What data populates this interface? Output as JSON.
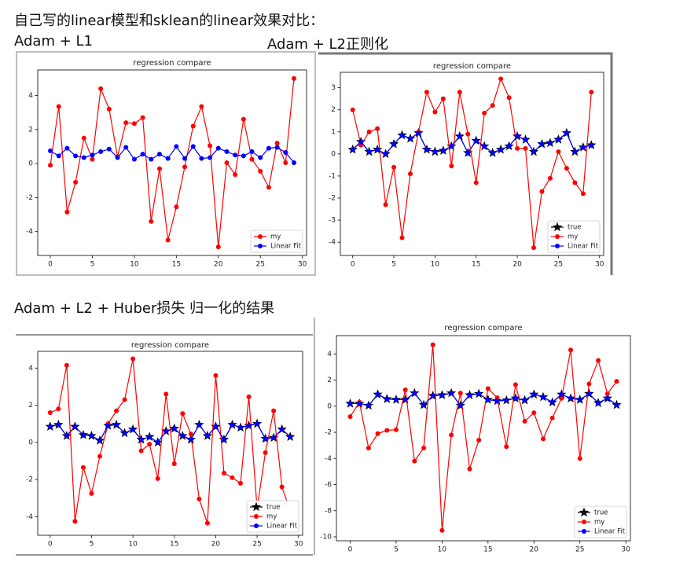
{
  "headings": {
    "intro": "自己写的linear模型和sklean的linear效果对比：",
    "l1": "Adam + L1",
    "l2": "Adam + L2正则化",
    "huber": "Adam + L2 + Huber损失 归一化的结果"
  },
  "chart_data": [
    {
      "type": "line",
      "title": "regression compare",
      "x": [
        0,
        1,
        2,
        3,
        4,
        5,
        6,
        7,
        8,
        9,
        10,
        11,
        12,
        13,
        14,
        15,
        16,
        17,
        18,
        19,
        20,
        21,
        22,
        23,
        24,
        25,
        26,
        27,
        28,
        29
      ],
      "series": [
        {
          "name": "my",
          "color": "#ff0000",
          "marker": "circle",
          "values": [
            -0.1,
            3.35,
            -2.85,
            -1.1,
            1.5,
            0.25,
            4.4,
            3.2,
            0.4,
            2.4,
            2.35,
            2.7,
            -3.4,
            -0.3,
            -4.5,
            -2.55,
            -0.2,
            2.2,
            3.35,
            1.05,
            -4.9,
            0.05,
            -0.65,
            2.6,
            0.25,
            -0.45,
            -1.4,
            1.2,
            0.05,
            5.0
          ]
        },
        {
          "name": "Linear Fit",
          "color": "#0000ff",
          "marker": "circle",
          "values": [
            0.75,
            0.45,
            0.9,
            0.45,
            0.35,
            0.5,
            0.7,
            0.85,
            0.35,
            0.95,
            0.25,
            0.55,
            0.25,
            0.55,
            0.3,
            1.0,
            0.3,
            1.0,
            0.3,
            0.35,
            0.9,
            0.7,
            0.5,
            0.45,
            0.7,
            0.35,
            0.9,
            0.95,
            0.65,
            0.05
          ]
        }
      ],
      "xlim": [
        -1.5,
        30.5
      ],
      "xticks": [
        0,
        5,
        10,
        15,
        20,
        25,
        30
      ],
      "ylim": [
        -5.4,
        5.5
      ],
      "yticks": [
        -4,
        -2,
        0,
        2,
        4
      ],
      "legend": "lower right"
    },
    {
      "type": "line",
      "title": "regression compare",
      "x": [
        0,
        1,
        2,
        3,
        4,
        5,
        6,
        7,
        8,
        9,
        10,
        11,
        12,
        13,
        14,
        15,
        16,
        17,
        18,
        19,
        20,
        21,
        22,
        23,
        24,
        25,
        26,
        27,
        28,
        29
      ],
      "series": [
        {
          "name": "true",
          "color": "#000000",
          "marker": "star",
          "values": [
            0.2,
            0.55,
            0.1,
            0.2,
            0.0,
            0.45,
            0.85,
            0.7,
            0.95,
            0.2,
            0.1,
            0.15,
            0.35,
            0.8,
            0.05,
            0.6,
            0.35,
            0.05,
            0.2,
            0.35,
            0.8,
            0.65,
            0.1,
            0.45,
            0.5,
            0.65,
            0.95,
            0.1,
            0.3,
            0.4
          ]
        },
        {
          "name": "my",
          "color": "#ff0000",
          "marker": "circle",
          "values": [
            2.0,
            0.4,
            1.0,
            1.15,
            -2.3,
            -0.6,
            -3.8,
            -0.9,
            1.0,
            2.8,
            1.9,
            2.5,
            -0.55,
            2.8,
            0.9,
            -1.3,
            1.85,
            2.2,
            3.4,
            2.55,
            0.25,
            0.25,
            -4.25,
            -1.7,
            -1.1,
            0.1,
            -0.65,
            -1.3,
            -1.8,
            2.8
          ]
        },
        {
          "name": "Linear Fit",
          "color": "#0000ff",
          "marker": "circle",
          "values": [
            0.2,
            0.55,
            0.1,
            0.2,
            0.0,
            0.45,
            0.85,
            0.7,
            0.95,
            0.2,
            0.1,
            0.15,
            0.35,
            0.8,
            0.05,
            0.6,
            0.35,
            0.05,
            0.2,
            0.35,
            0.8,
            0.65,
            0.1,
            0.45,
            0.5,
            0.65,
            0.95,
            0.1,
            0.3,
            0.4
          ]
        }
      ],
      "xlim": [
        -1.5,
        30.5
      ],
      "xticks": [
        0,
        5,
        10,
        15,
        20,
        25,
        30
      ],
      "ylim": [
        -4.6,
        3.7
      ],
      "yticks": [
        -4,
        -3,
        -2,
        -1,
        0,
        1,
        2,
        3
      ],
      "legend": "lower right"
    },
    {
      "type": "line",
      "title": "regression compare",
      "x": [
        0,
        1,
        2,
        3,
        4,
        5,
        6,
        7,
        8,
        9,
        10,
        11,
        12,
        13,
        14,
        15,
        16,
        17,
        18,
        19,
        20,
        21,
        22,
        23,
        24,
        25,
        26,
        27,
        28,
        29
      ],
      "series": [
        {
          "name": "true",
          "color": "#000000",
          "marker": "star",
          "values": [
            0.85,
            0.95,
            0.35,
            0.85,
            0.4,
            0.35,
            0.1,
            0.9,
            0.95,
            0.5,
            0.7,
            0.15,
            0.3,
            0.0,
            0.6,
            0.75,
            0.35,
            0.15,
            0.95,
            0.35,
            0.85,
            0.15,
            0.95,
            0.8,
            0.9,
            1.0,
            0.2,
            0.25,
            0.7,
            0.3
          ]
        },
        {
          "name": "my",
          "color": "#ff0000",
          "marker": "circle",
          "values": [
            1.6,
            1.8,
            4.15,
            -4.25,
            -1.35,
            -2.75,
            -0.75,
            1.0,
            1.7,
            2.3,
            4.5,
            -0.45,
            -0.1,
            -1.95,
            2.6,
            -1.15,
            1.55,
            0.45,
            -3.05,
            -4.35,
            3.6,
            -1.65,
            -1.9,
            -2.2,
            2.45,
            -3.55,
            -0.55,
            1.7,
            -2.4,
            -3.7
          ]
        },
        {
          "name": "Linear Fit",
          "color": "#0000ff",
          "marker": "circle",
          "values": [
            0.85,
            0.95,
            0.35,
            0.85,
            0.4,
            0.35,
            0.1,
            0.9,
            0.95,
            0.5,
            0.7,
            0.15,
            0.3,
            0.0,
            0.6,
            0.75,
            0.35,
            0.15,
            0.95,
            0.35,
            0.85,
            0.15,
            0.95,
            0.8,
            0.9,
            1.0,
            0.2,
            0.25,
            0.7,
            0.3
          ]
        }
      ],
      "xlim": [
        -1.5,
        30.5
      ],
      "xticks": [
        0,
        5,
        10,
        15,
        20,
        25,
        30
      ],
      "ylim": [
        -5.0,
        4.9
      ],
      "yticks": [
        -4,
        -2,
        0,
        2,
        4
      ],
      "legend": "lower right"
    },
    {
      "type": "line",
      "title": "regression compare",
      "x": [
        0,
        1,
        2,
        3,
        4,
        5,
        6,
        7,
        8,
        9,
        10,
        11,
        12,
        13,
        14,
        15,
        16,
        17,
        18,
        19,
        20,
        21,
        22,
        23,
        24,
        25,
        26,
        27,
        28,
        29
      ],
      "series": [
        {
          "name": "true",
          "color": "#000000",
          "marker": "star",
          "values": [
            0.2,
            0.2,
            0.05,
            0.9,
            0.55,
            0.5,
            0.5,
            1.0,
            0.1,
            0.8,
            0.85,
            1.0,
            0.05,
            0.85,
            0.95,
            0.5,
            0.4,
            0.45,
            0.6,
            0.45,
            0.9,
            0.7,
            0.3,
            0.9,
            0.6,
            0.5,
            0.95,
            0.25,
            0.6,
            0.1
          ]
        },
        {
          "name": "my",
          "color": "#ff0000",
          "marker": "circle",
          "values": [
            -0.8,
            0.3,
            -3.2,
            -2.1,
            -1.85,
            -1.8,
            1.25,
            -4.2,
            -3.2,
            4.7,
            -9.5,
            -2.2,
            1.0,
            -4.8,
            -2.6,
            1.35,
            0.65,
            -3.1,
            1.65,
            -1.15,
            -0.5,
            -2.5,
            -0.9,
            0.6,
            4.3,
            -4.0,
            1.7,
            3.5,
            0.95,
            1.9
          ]
        },
        {
          "name": "Linear Fit",
          "color": "#0000ff",
          "marker": "circle",
          "values": [
            0.2,
            0.2,
            0.05,
            0.9,
            0.55,
            0.5,
            0.5,
            1.0,
            0.1,
            0.8,
            0.85,
            1.0,
            0.05,
            0.85,
            0.95,
            0.5,
            0.4,
            0.45,
            0.6,
            0.45,
            0.9,
            0.7,
            0.3,
            0.9,
            0.6,
            0.5,
            0.95,
            0.25,
            0.6,
            0.1
          ]
        }
      ],
      "xlim": [
        -1.5,
        30.5
      ],
      "xticks": [
        0,
        5,
        10,
        15,
        20,
        25,
        30
      ],
      "ylim": [
        -10.3,
        5.4
      ],
      "yticks": [
        -10,
        -8,
        -6,
        -4,
        -2,
        0,
        2,
        4
      ],
      "legend": "lower right"
    }
  ]
}
